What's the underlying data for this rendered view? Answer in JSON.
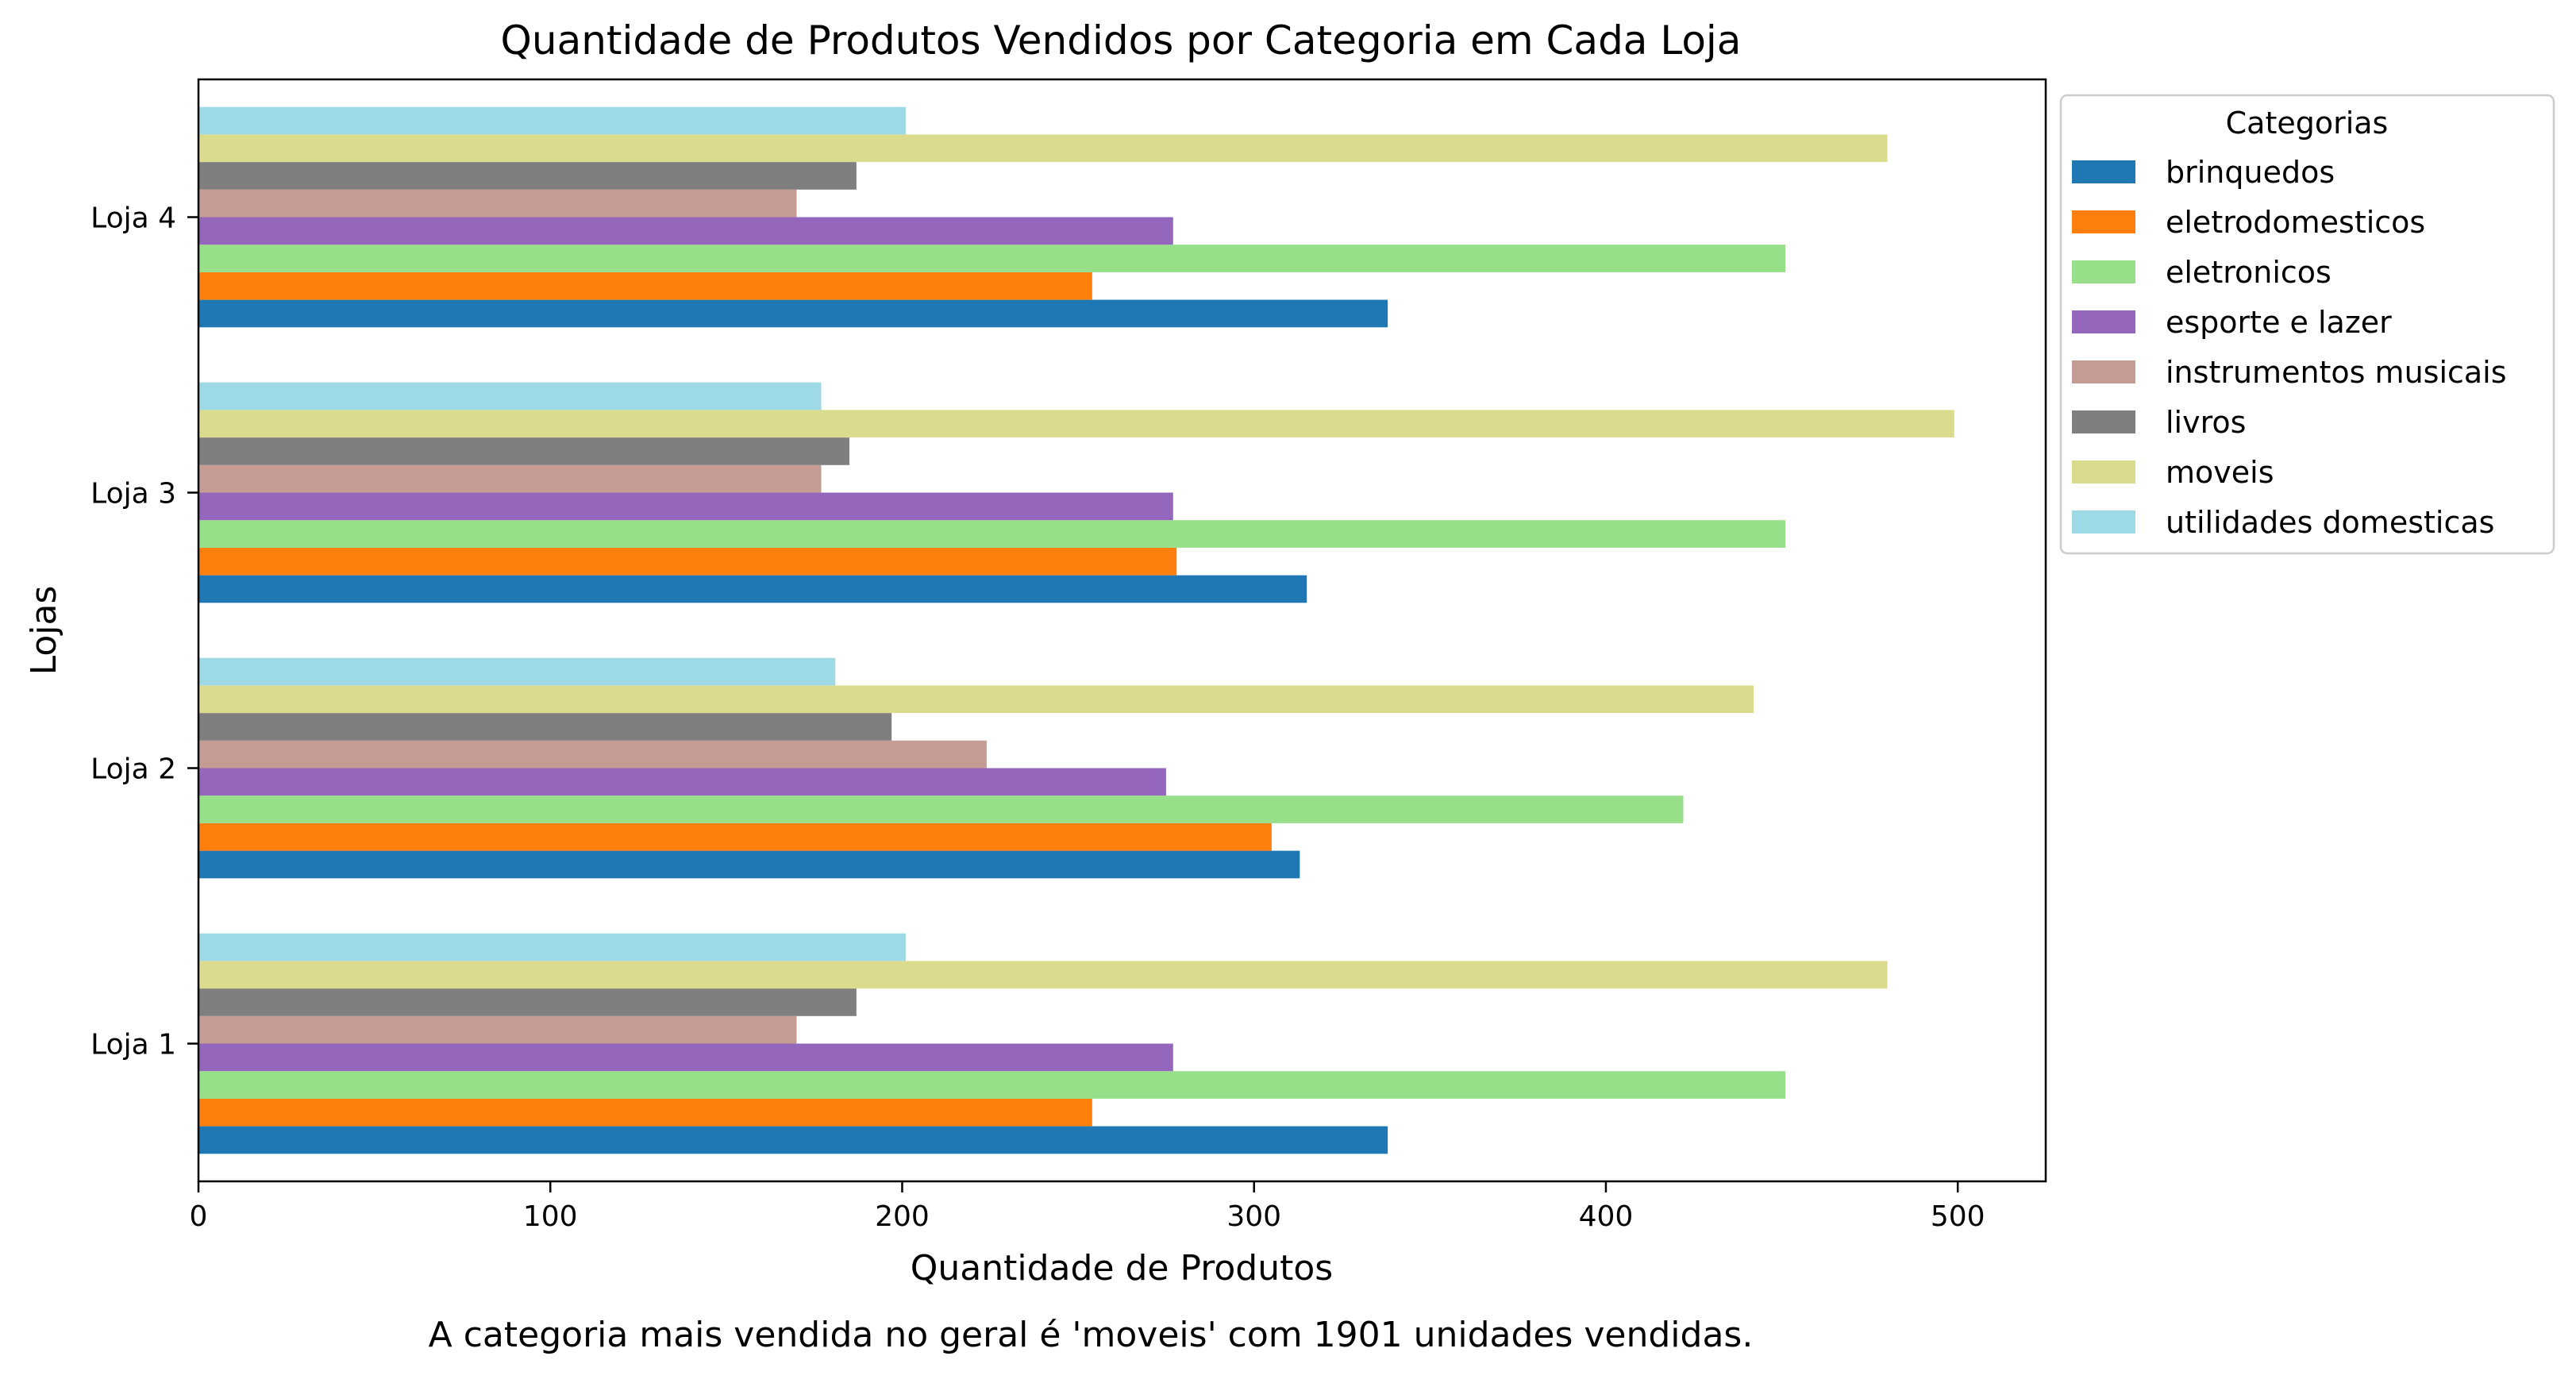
{
  "chart_data": {
    "type": "bar",
    "orientation": "horizontal",
    "title": "Quantidade de Produtos Vendidos por Categoria em Cada Loja",
    "xlabel": "Quantidade de Produtos",
    "ylabel": "Lojas",
    "xlim": [
      0,
      525
    ],
    "xticks": [
      "0",
      "100",
      "200",
      "300",
      "400",
      "500"
    ],
    "categories": [
      "Loja 1",
      "Loja 2",
      "Loja 3",
      "Loja 4"
    ],
    "legend": {
      "title": "Categorias",
      "placement": "outside-top-right"
    },
    "series": [
      {
        "name": "brinquedos",
        "color": "#1f77b4",
        "values": [
          338,
          313,
          315,
          338
        ]
      },
      {
        "name": "eletrodomesticos",
        "color": "#ff7f0e",
        "values": [
          254,
          305,
          278,
          254
        ]
      },
      {
        "name": "eletronicos",
        "color": "#98df8a",
        "values": [
          451,
          422,
          451,
          451
        ]
      },
      {
        "name": "esporte e lazer",
        "color": "#9467bd",
        "values": [
          277,
          275,
          277,
          277
        ]
      },
      {
        "name": "instrumentos musicais",
        "color": "#c49c94",
        "values": [
          170,
          224,
          177,
          170
        ]
      },
      {
        "name": "livros",
        "color": "#7f7f7f",
        "values": [
          187,
          197,
          185,
          187
        ]
      },
      {
        "name": "moveis",
        "color": "#dbdb8d",
        "values": [
          480,
          442,
          499,
          480
        ]
      },
      {
        "name": "utilidades domesticas",
        "color": "#9edae5",
        "values": [
          201,
          181,
          177,
          201
        ]
      }
    ],
    "footnote": "A categoria mais vendida no geral é 'moveis' com 1901 unidades vendidas."
  }
}
